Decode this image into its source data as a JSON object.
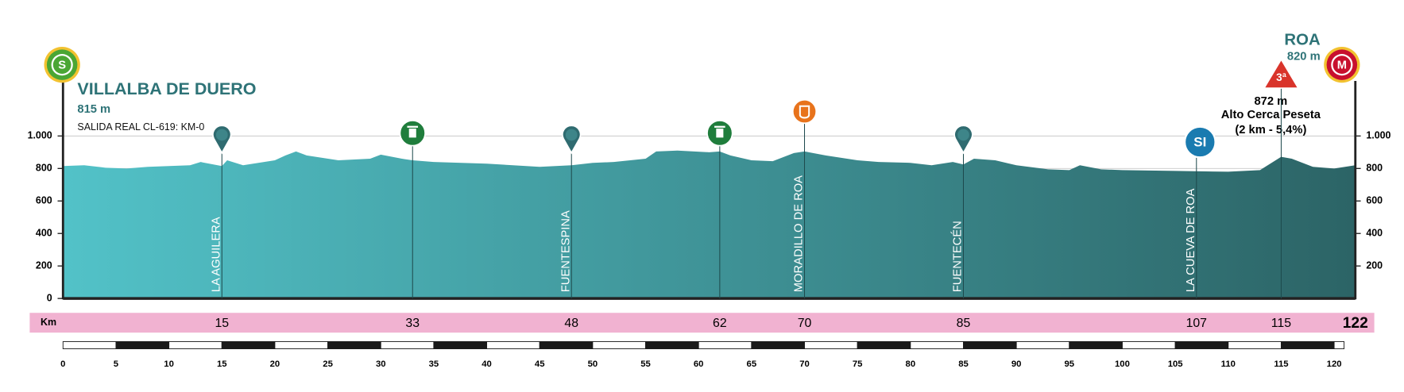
{
  "chart_data": {
    "type": "area",
    "start": {
      "badge": "S",
      "name": "VILLALBA DE DUERO",
      "elevation": "815 m",
      "note": "SALIDA REAL CL-619:  KM-0"
    },
    "finish": {
      "badge": "M",
      "name": "ROA",
      "elevation": "820 m"
    },
    "climb": {
      "category": "3ª",
      "elevation": "872 m",
      "name": "Alto Cerca Peseta",
      "detail": "(2 km - 5,4%)"
    },
    "km_label": "Km",
    "points": [
      {
        "km": 15,
        "name": "LA AGUILERA",
        "icon": "pin"
      },
      {
        "km": 33,
        "icon": "waste"
      },
      {
        "km": 48,
        "name": "FUENTESPINA",
        "icon": "pin"
      },
      {
        "km": 62,
        "icon": "waste"
      },
      {
        "km": 70,
        "name": "MORADILLO DE ROA",
        "icon": "feed"
      },
      {
        "km": 85,
        "name": "FUENTECÉN",
        "icon": "pin"
      },
      {
        "km": 107,
        "name": "LA CUEVA DE ROA",
        "icon": "sprint",
        "badge": "SI"
      },
      {
        "km": 115,
        "icon": "climb"
      },
      {
        "km": 122,
        "icon": "finish"
      }
    ],
    "x": [
      0,
      2,
      4,
      6,
      8,
      10,
      12,
      13,
      15,
      15.5,
      17,
      20,
      21,
      22,
      23,
      26,
      29,
      30,
      32,
      33,
      35,
      40,
      45,
      48,
      50,
      52,
      55,
      56,
      58,
      61,
      62,
      63,
      65,
      67,
      69,
      70,
      72,
      75,
      77,
      80,
      82,
      84,
      85,
      86,
      88,
      90,
      93,
      95,
      96,
      98,
      100,
      105,
      110,
      113,
      115,
      116,
      118,
      120,
      122
    ],
    "values": [
      815,
      820,
      805,
      800,
      810,
      815,
      820,
      840,
      815,
      850,
      820,
      850,
      880,
      905,
      880,
      850,
      860,
      885,
      860,
      850,
      840,
      830,
      810,
      820,
      835,
      840,
      860,
      905,
      910,
      900,
      905,
      880,
      850,
      845,
      895,
      905,
      880,
      850,
      840,
      835,
      820,
      840,
      825,
      860,
      850,
      820,
      795,
      790,
      820,
      795,
      790,
      785,
      780,
      790,
      872,
      860,
      810,
      800,
      820
    ],
    "color_start": "#52c2c8",
    "color_end": "#2c6466",
    "xlim": [
      0,
      122
    ],
    "ylim": [
      0,
      1300
    ],
    "yticks": [
      0,
      200,
      400,
      600,
      800,
      {
        "value": 1000,
        "label": "1.000"
      }
    ],
    "xticks": [
      0,
      5,
      10,
      15,
      20,
      25,
      30,
      35,
      40,
      45,
      50,
      55,
      60,
      65,
      70,
      75,
      80,
      85,
      90,
      95,
      100,
      105,
      110,
      115,
      120
    ],
    "grid": true
  }
}
